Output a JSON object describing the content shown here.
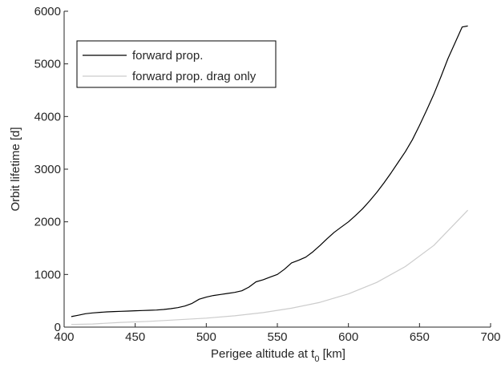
{
  "chart_data": {
    "type": "line",
    "title": "",
    "xlabel_prefix": "Perigee altitude at t",
    "xlabel_sub": "0",
    "xlabel_suffix": " [km]",
    "ylabel": "Orbit lifetime [d]",
    "xlim": [
      400,
      700
    ],
    "ylim": [
      0,
      6000
    ],
    "xticks": [
      400,
      450,
      500,
      550,
      600,
      650,
      700
    ],
    "yticks": [
      0,
      1000,
      2000,
      3000,
      4000,
      5000,
      6000
    ],
    "grid": false,
    "legend_position": "top-left",
    "series": [
      {
        "name": "forward prop.",
        "color": "#000000",
        "x": [
          405,
          410,
          415,
          420,
          425,
          430,
          435,
          440,
          445,
          450,
          455,
          460,
          465,
          470,
          475,
          480,
          485,
          490,
          495,
          500,
          505,
          510,
          515,
          520,
          525,
          530,
          535,
          540,
          545,
          550,
          555,
          560,
          565,
          570,
          575,
          580,
          585,
          590,
          595,
          600,
          605,
          610,
          615,
          620,
          625,
          630,
          635,
          640,
          645,
          650,
          655,
          660,
          665,
          670,
          675,
          680,
          684
        ],
        "y": [
          200,
          225,
          255,
          270,
          280,
          290,
          295,
          300,
          305,
          310,
          315,
          320,
          325,
          335,
          350,
          370,
          400,
          450,
          530,
          570,
          600,
          620,
          640,
          660,
          690,
          760,
          860,
          900,
          950,
          1000,
          1100,
          1220,
          1270,
          1330,
          1430,
          1550,
          1680,
          1800,
          1900,
          2000,
          2120,
          2250,
          2400,
          2560,
          2740,
          2930,
          3130,
          3330,
          3560,
          3830,
          4120,
          4420,
          4750,
          5100,
          5400,
          5700,
          5720
        ]
      },
      {
        "name": "forward prop. drag only",
        "color": "#cccccc",
        "x": [
          405,
          420,
          440,
          460,
          480,
          500,
          520,
          540,
          560,
          580,
          600,
          620,
          640,
          660,
          684
        ],
        "y": [
          50,
          60,
          90,
          110,
          140,
          170,
          215,
          275,
          360,
          470,
          630,
          850,
          1150,
          1550,
          2220
        ]
      }
    ]
  }
}
